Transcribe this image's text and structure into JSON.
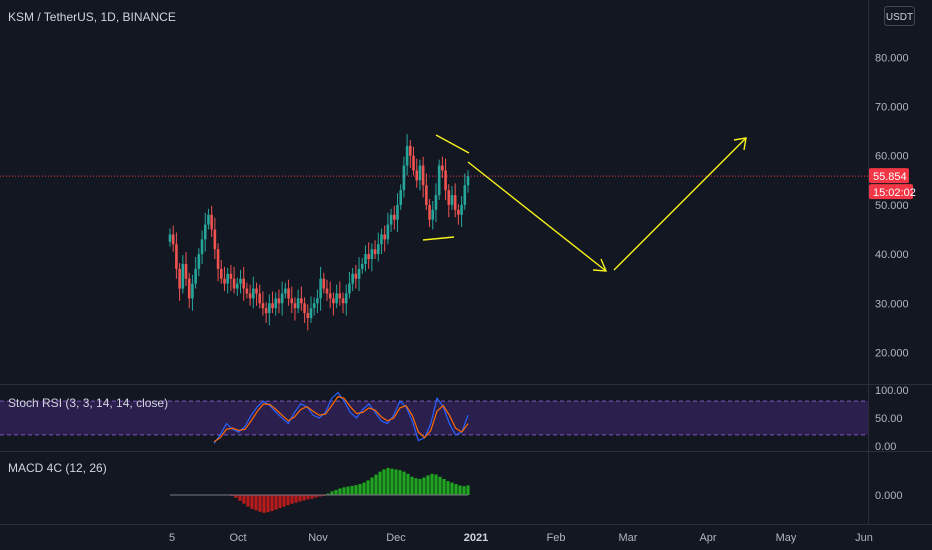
{
  "header": {
    "symbol_title": "KSM / TetherUS, 1D, BINANCE",
    "currency_button": "USDT"
  },
  "colors": {
    "background": "#131722",
    "up": "#26a69a",
    "down": "#ef5350",
    "arrow": "#f7f21a",
    "last_price": "#f23645",
    "rsi_band": "#2b1f4d",
    "k_line": "#2962ff",
    "d_line": "#ff6d00",
    "macd_up": "#1fa51f",
    "macd_down": "#b71c1c"
  },
  "chart_data": [
    {
      "type": "candlestick",
      "title": "KSM / TetherUS, 1D, BINANCE",
      "y_ticks": [
        "20.000",
        "30.000",
        "40.000",
        "50.000",
        "60.000",
        "70.000",
        "80.000"
      ],
      "ylim": [
        14,
        88
      ],
      "x_tick_labels": [
        "5",
        "Oct",
        "Nov",
        "Dec",
        "2021",
        "Feb",
        "Mar",
        "Apr",
        "May",
        "Jun"
      ],
      "last_price": "55.854",
      "countdown": "15:02:02",
      "close_series": [
        44,
        42,
        37,
        33,
        38,
        35,
        31,
        34,
        37,
        40,
        43,
        46,
        48,
        45,
        41,
        37,
        35,
        34,
        36,
        35,
        33,
        34,
        35,
        33,
        32,
        31,
        33,
        32,
        30,
        29,
        28,
        30,
        29,
        31,
        30,
        32,
        33,
        31,
        30,
        29,
        31,
        30,
        28,
        27,
        29,
        30,
        31,
        35,
        33,
        32,
        31,
        30,
        32,
        31,
        30,
        32,
        34,
        36,
        35,
        37,
        38,
        40,
        39,
        41,
        40,
        42,
        44,
        43,
        46,
        48,
        47,
        50,
        53,
        58,
        62,
        60,
        57,
        55,
        58,
        54,
        50,
        47,
        49,
        52,
        58,
        57,
        53,
        50,
        52,
        49,
        48,
        50,
        54,
        55.854
      ],
      "annotations": [
        {
          "type": "wedge-upper-line"
        },
        {
          "type": "wedge-lower-line"
        },
        {
          "type": "arrow-down"
        },
        {
          "type": "arrow-up"
        }
      ]
    },
    {
      "type": "line",
      "title": "Stoch RSI (3, 3, 14, 14, close)",
      "y_ticks": [
        "100.00",
        "50.00",
        "0.00"
      ],
      "ylim": [
        -5,
        105
      ],
      "band": [
        20,
        80
      ],
      "series": [
        {
          "values": [
            5,
            20,
            40,
            30,
            25,
            35,
            55,
            70,
            80,
            72,
            60,
            50,
            40,
            60,
            75,
            70,
            55,
            50,
            60,
            85,
            95,
            80,
            60,
            50,
            65,
            75,
            60,
            45,
            40,
            55,
            80,
            70,
            45,
            10,
            15,
            40,
            85,
            70,
            40,
            20,
            25,
            55
          ]
        },
        {
          "values": [
            8,
            15,
            30,
            32,
            28,
            30,
            45,
            62,
            75,
            74,
            65,
            55,
            45,
            52,
            65,
            70,
            62,
            55,
            57,
            72,
            88,
            85,
            70,
            58,
            60,
            68,
            64,
            52,
            45,
            50,
            68,
            72,
            55,
            25,
            15,
            28,
            62,
            72,
            55,
            32,
            25,
            40
          ]
        }
      ]
    },
    {
      "type": "bar",
      "title": "MACD 4C (12, 26)",
      "y_ticks": [
        "0.000"
      ],
      "values": [
        -0.2,
        -0.8,
        -1.6,
        -2.4,
        -3.2,
        -3.8,
        -4.2,
        -4.6,
        -4.9,
        -4.7,
        -4.4,
        -4.0,
        -3.6,
        -3.2,
        -2.8,
        -2.4,
        -2.1,
        -1.8,
        -1.5,
        -1.2,
        -1.0,
        -0.7,
        -0.4,
        -0.2,
        0.4,
        1.0,
        1.4,
        1.8,
        2.1,
        2.3,
        2.5,
        2.7,
        3.0,
        3.4,
        4.0,
        4.8,
        5.6,
        6.4,
        7.0,
        7.4,
        7.2,
        7.0,
        6.8,
        6.4,
        5.8,
        5.0,
        4.6,
        4.4,
        4.8,
        5.4,
        5.8,
        5.6,
        5.0,
        4.4,
        3.8,
        3.4,
        3.0,
        2.6,
        2.4,
        2.6
      ]
    }
  ]
}
